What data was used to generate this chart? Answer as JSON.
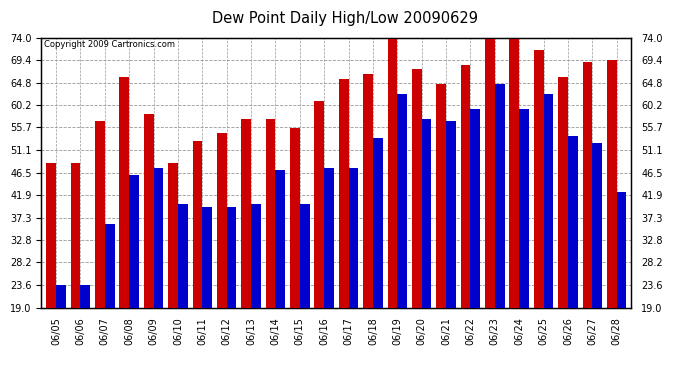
{
  "title": "Dew Point Daily High/Low 20090629",
  "copyright": "Copyright 2009 Cartronics.com",
  "dates": [
    "06/05",
    "06/06",
    "06/07",
    "06/08",
    "06/09",
    "06/10",
    "06/11",
    "06/12",
    "06/13",
    "06/14",
    "06/15",
    "06/16",
    "06/17",
    "06/18",
    "06/19",
    "06/20",
    "06/21",
    "06/22",
    "06/23",
    "06/24",
    "06/25",
    "06/26",
    "06/27",
    "06/28"
  ],
  "highs": [
    48.5,
    48.5,
    57.0,
    66.0,
    58.5,
    48.5,
    53.0,
    54.5,
    57.5,
    57.5,
    55.5,
    61.0,
    65.5,
    66.5,
    74.0,
    67.5,
    64.5,
    68.5,
    74.0,
    74.0,
    71.5,
    66.0,
    69.0,
    69.5
  ],
  "lows": [
    23.6,
    23.6,
    36.0,
    46.0,
    47.5,
    40.0,
    39.5,
    39.5,
    40.0,
    47.0,
    40.0,
    47.5,
    47.5,
    53.5,
    62.5,
    57.5,
    57.0,
    59.5,
    64.5,
    59.5,
    62.5,
    54.0,
    52.5,
    42.5
  ],
  "high_color": "#cc0000",
  "low_color": "#0000cc",
  "bg_color": "#ffffff",
  "grid_color": "#999999",
  "yticks": [
    19.0,
    23.6,
    28.2,
    32.8,
    37.3,
    41.9,
    46.5,
    51.1,
    55.7,
    60.2,
    64.8,
    69.4,
    74.0
  ],
  "ymin": 19.0,
  "ymax": 74.0,
  "bar_width": 0.4
}
